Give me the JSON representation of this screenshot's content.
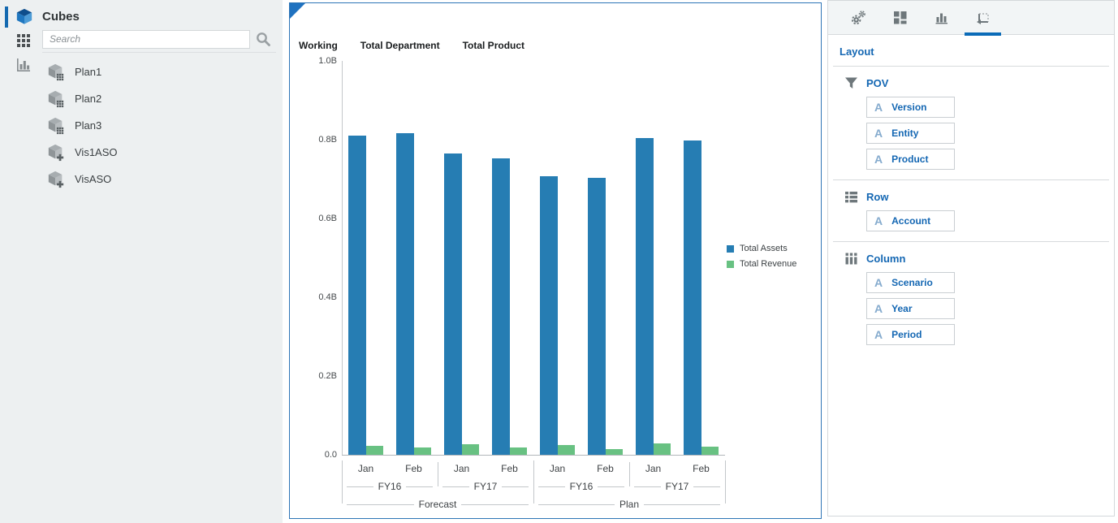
{
  "sidebar": {
    "title": "Cubes",
    "search_placeholder": "Search",
    "cubes": [
      {
        "label": "Plan1",
        "type": "plan"
      },
      {
        "label": "Plan2",
        "type": "plan"
      },
      {
        "label": "Plan3",
        "type": "plan"
      },
      {
        "label": "Vis1ASO",
        "type": "aso"
      },
      {
        "label": "VisASO",
        "type": "aso"
      }
    ]
  },
  "chart_panel": {
    "pov_labels": [
      "Working",
      "Total Department",
      "Total Product"
    ]
  },
  "chart_data": {
    "type": "bar",
    "title": "",
    "x_hierarchy": {
      "periods": [
        "Jan",
        "Feb",
        "Jan",
        "Feb",
        "Jan",
        "Feb",
        "Jan",
        "Feb"
      ],
      "years": [
        {
          "label": "FY16",
          "span": 2
        },
        {
          "label": "FY17",
          "span": 2
        },
        {
          "label": "FY16",
          "span": 2
        },
        {
          "label": "FY17",
          "span": 2
        }
      ],
      "scenarios": [
        {
          "label": "Forecast",
          "span": 4
        },
        {
          "label": "Plan",
          "span": 4
        }
      ]
    },
    "series": [
      {
        "name": "Total Assets",
        "color": "#267db3",
        "values": [
          0.81,
          0.816,
          0.765,
          0.752,
          0.707,
          0.703,
          0.804,
          0.798
        ]
      },
      {
        "name": "Total Revenue",
        "color": "#68c182",
        "values": [
          0.023,
          0.018,
          0.027,
          0.019,
          0.025,
          0.015,
          0.029,
          0.021
        ]
      }
    ],
    "value_unit": "B",
    "ylim": [
      0,
      1.0
    ],
    "yticks_top_to_bottom": [
      "1.0B",
      "0.8B",
      "0.6B",
      "0.4B",
      "0.2B",
      "0.0"
    ],
    "grid": false,
    "legend_position": "right"
  },
  "right_panel": {
    "tabs": [
      {
        "name": "settings",
        "active": false
      },
      {
        "name": "tiles",
        "active": false
      },
      {
        "name": "chart",
        "active": false
      },
      {
        "name": "layout",
        "active": true
      }
    ],
    "header": "Layout",
    "sections": [
      {
        "label": "POV",
        "icon": "filter",
        "items": [
          "Version",
          "Entity",
          "Product"
        ]
      },
      {
        "label": "Row",
        "icon": "list",
        "items": [
          "Account"
        ]
      },
      {
        "label": "Column",
        "icon": "columns",
        "items": [
          "Scenario",
          "Year",
          "Period"
        ]
      }
    ]
  },
  "colors": {
    "accent_blue": "#1467b3",
    "bar_blue": "#267db3",
    "bar_green": "#68c182"
  }
}
